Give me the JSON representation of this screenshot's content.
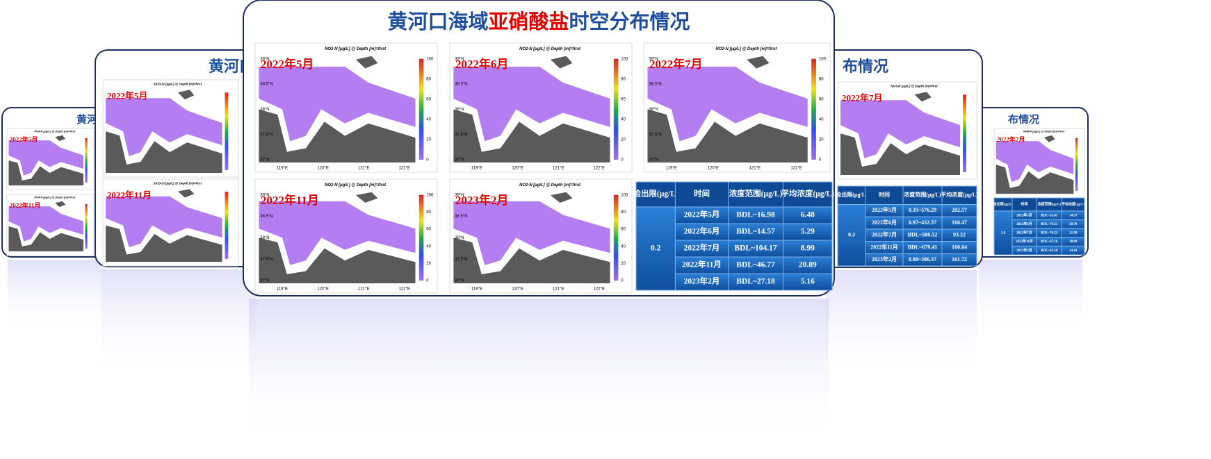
{
  "center": {
    "title": {
      "prefix": "黄河口海域",
      "highlight": "亚硝酸盐",
      "suffix": "时空分布情况"
    },
    "header": "NO2-N [μg/L] @ Depth [m]=first",
    "maps": [
      "2022年5月",
      "2022年6月",
      "2022年7月",
      "2022年11月",
      "2023年2月"
    ],
    "colorbar": [
      0,
      20,
      40,
      60,
      80,
      100
    ],
    "table": {
      "headers": [
        "检出限(μg/L)",
        "时间",
        "浓度范围(μg/L)",
        "平均浓度(μg/L)"
      ],
      "detection_limit": "0.2",
      "rows": [
        [
          "2022年5月",
          "BDL~16.98",
          "6.48"
        ],
        [
          "2022年6月",
          "BDL~14.57",
          "5.29"
        ],
        [
          "2022年7月",
          "BDL~104.17",
          "8.99"
        ],
        [
          "2022年11月",
          "BDL~46.77",
          "20.89"
        ],
        [
          "2023年2月",
          "BDL~27.18",
          "5.16"
        ]
      ]
    }
  },
  "lon": [
    "119°E",
    "120°E",
    "121°E",
    "122°E"
  ],
  "lat": [
    "39°N",
    "38.5°N",
    "38°N",
    "37.5°N",
    "37°N"
  ],
  "left_1": {
    "title": "黄河口",
    "header": "SiO3-Si [μg/L] @ Depth [m]=first",
    "maps": [
      "2022年5月",
      "2022年11月"
    ]
  },
  "left_2": {
    "title": "黄河",
    "header": "PO4-P [μg/L] @ Depth [m]=first",
    "maps": [
      "2022年5月",
      "2022年11月"
    ]
  },
  "right_1": {
    "title": "布情况",
    "header": "NO3-N [μg/L] @ Depth [m]=first",
    "maps": [
      "2022年7月"
    ],
    "table": {
      "headers": [
        "检出限(μg/L)",
        "时间",
        "浓度范围(μg/L)",
        "平均浓度(μg/L)"
      ],
      "detection_limit": "0.3",
      "rows": [
        [
          "2022年5月",
          "0.35~576.29",
          "202.57"
        ],
        [
          "2022年6月",
          "0.97~432.37",
          "166.47"
        ],
        [
          "2022年7月",
          "BDL~580.52",
          "93.22"
        ],
        [
          "2022年11月",
          "BDL~679.41",
          "160.64"
        ],
        [
          "2023年2月",
          "8.88~386.37",
          "161.72"
        ]
      ]
    }
  },
  "right_2": {
    "title": "布情况",
    "header": "NH4-N [μg/L] @ Depth [m]=first",
    "maps": [
      "2022年7月"
    ],
    "table": {
      "headers": [
        "检出限(μg/L)",
        "时间",
        "浓度范围(μg/L)",
        "平均浓度(μg/L)"
      ],
      "detection_limit": "2.8",
      "rows": [
        [
          "2022年5月",
          "BDL~55.81",
          "14.57"
        ],
        [
          "2022年6月",
          "BDL~74.31",
          "20.70"
        ],
        [
          "2022年7月",
          "BDL~76.22",
          "21.98"
        ],
        [
          "2022年11月",
          "BDL~67.16",
          "10.09"
        ],
        [
          "2023年2月",
          "BDL~63.58",
          "14.10"
        ]
      ]
    }
  }
}
